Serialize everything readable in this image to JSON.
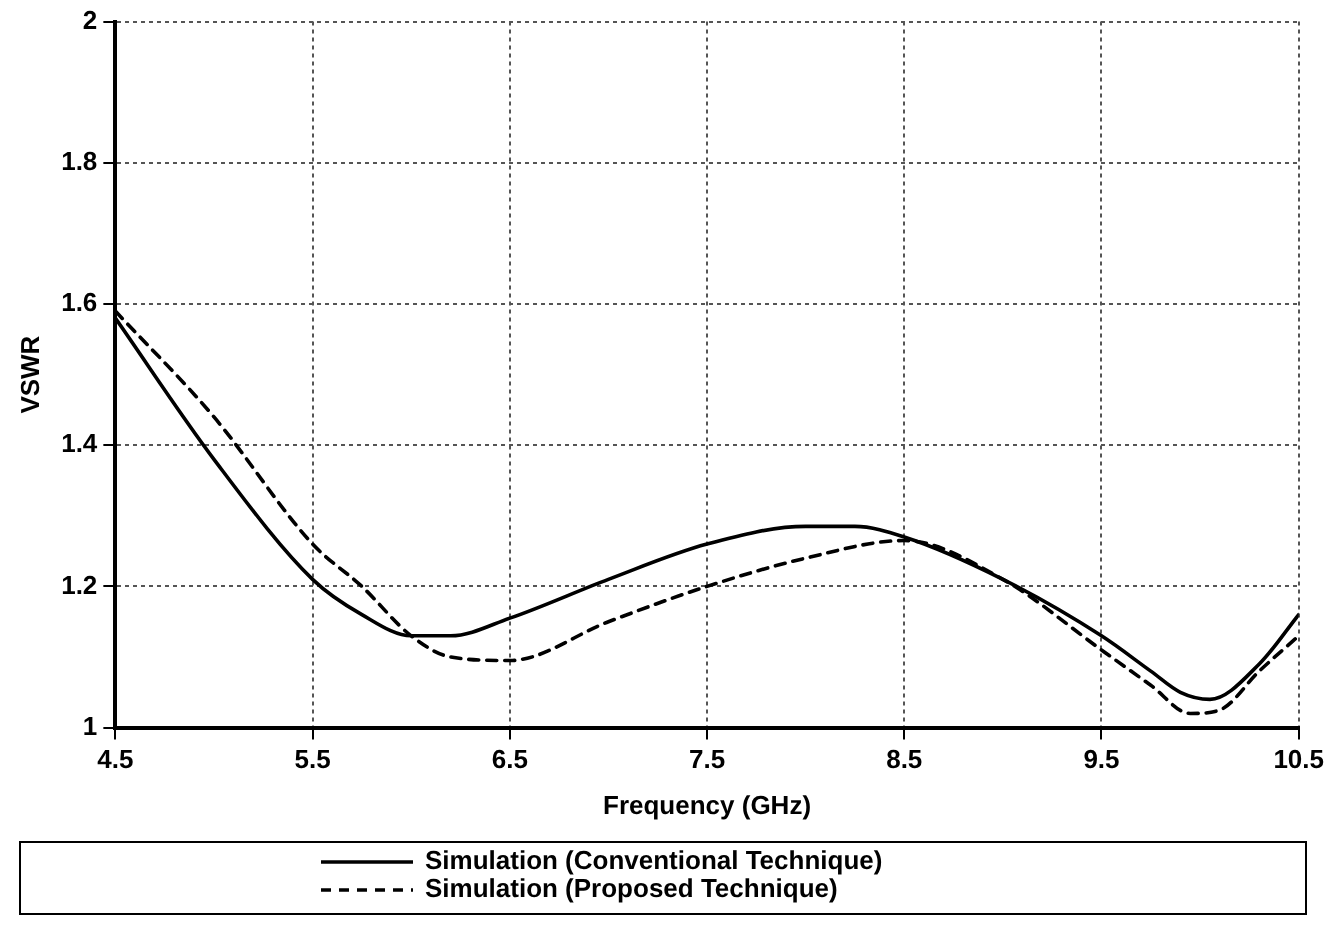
{
  "chart_data": {
    "type": "line",
    "xlabel": "Frequency (GHz)",
    "ylabel": "VSWR",
    "xlim": [
      4.5,
      10.5
    ],
    "xticks": [
      4.5,
      5.5,
      6.5,
      7.5,
      8.5,
      9.5,
      10.5
    ],
    "ylim": [
      1,
      2
    ],
    "yticks": [
      1,
      1.2,
      1.4,
      1.6,
      1.8,
      2
    ],
    "grid": true,
    "legend": "bottom",
    "marker": "none",
    "series": [
      {
        "name": "Simulation (Conventional Technique)",
        "color": "#000000",
        "line_style": "solid",
        "x": [
          4.5,
          5.0,
          5.5,
          5.75,
          6.0,
          6.2,
          6.5,
          7.0,
          7.5,
          8.0,
          8.25,
          8.5,
          9.0,
          9.5,
          9.75,
          9.9,
          10.05,
          10.3,
          10.5
        ],
        "values": [
          1.58,
          1.38,
          1.21,
          1.16,
          1.13,
          1.13,
          1.155,
          1.21,
          1.26,
          1.285,
          1.285,
          1.27,
          1.21,
          1.13,
          1.08,
          1.05,
          1.04,
          1.09,
          1.16
        ]
      },
      {
        "name": "Simulation (Proposed Technique)",
        "color": "#000000",
        "line_style": "dashed",
        "x": [
          4.5,
          5.0,
          5.5,
          5.75,
          6.0,
          6.2,
          6.5,
          7.0,
          7.5,
          8.0,
          8.5,
          9.0,
          9.5,
          9.75,
          9.95,
          10.1,
          10.3,
          10.5
        ],
        "values": [
          1.59,
          1.44,
          1.26,
          1.2,
          1.13,
          1.1,
          1.095,
          1.15,
          1.2,
          1.24,
          1.265,
          1.21,
          1.11,
          1.06,
          1.02,
          1.025,
          1.08,
          1.13
        ]
      }
    ]
  }
}
